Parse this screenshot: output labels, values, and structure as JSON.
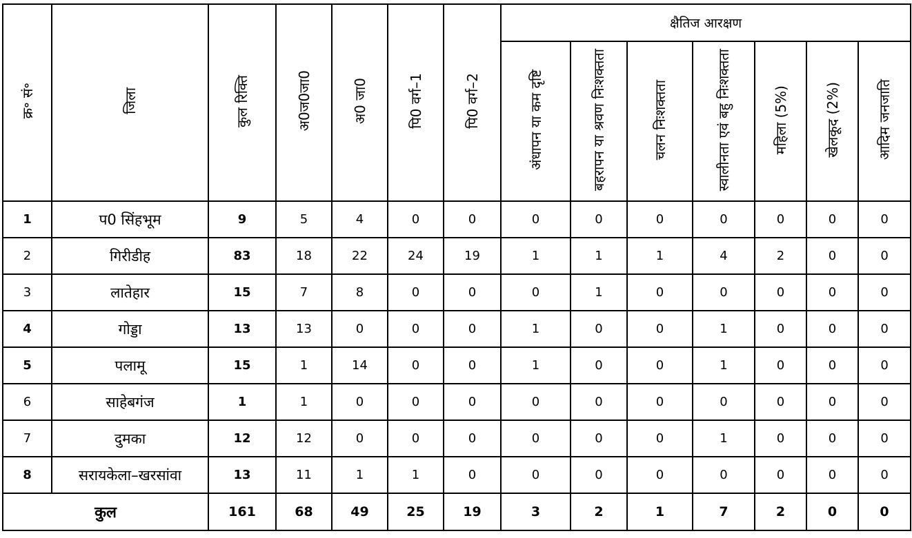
{
  "header": {
    "serial": "क्र॰ सं॰",
    "district": "जिला",
    "total_vacancy": "कुल रिक्ति",
    "st": "अ0ज0जा0",
    "sc": "अ0 जा0",
    "bc1": "पि0 वर्ग–1",
    "bc2": "पि0 वर्ग–2",
    "horizontal_reservation": "क्षैतिज आरक्षण",
    "sub": [
      "अंधापन या कम दृष्टि",
      "बहरापन या श्रवण निःशक्तता",
      "चलन निःशक्तता",
      "स्वालीनता एवं बहु निःशक्तता",
      "महिला (5%)",
      "खेलकूद (2%)",
      "आदिम जनजाति"
    ]
  },
  "rows": [
    {
      "sn": "1",
      "district": "प0 सिंहभूम",
      "total": "9",
      "st": "5",
      "sc": "4",
      "bc1": "0",
      "bc2": "0",
      "h": [
        "0",
        "0",
        "0",
        "0",
        "0",
        "0",
        "0"
      ],
      "sn_bold": true
    },
    {
      "sn": "2",
      "district": "गिरीडीह",
      "total": "83",
      "st": "18",
      "sc": "22",
      "bc1": "24",
      "bc2": "19",
      "h": [
        "1",
        "1",
        "1",
        "4",
        "2",
        "0",
        "0"
      ],
      "sn_bold": false
    },
    {
      "sn": "3",
      "district": "लातेहार",
      "total": "15",
      "st": "7",
      "sc": "8",
      "bc1": "0",
      "bc2": "0",
      "h": [
        "0",
        "1",
        "0",
        "0",
        "0",
        "0",
        "0"
      ],
      "sn_bold": false
    },
    {
      "sn": "4",
      "district": "गोड्डा",
      "total": "13",
      "st": "13",
      "sc": "0",
      "bc1": "0",
      "bc2": "0",
      "h": [
        "1",
        "0",
        "0",
        "1",
        "0",
        "0",
        "0"
      ],
      "sn_bold": true
    },
    {
      "sn": "5",
      "district": "पलामू",
      "total": "15",
      "st": "1",
      "sc": "14",
      "bc1": "0",
      "bc2": "0",
      "h": [
        "1",
        "0",
        "0",
        "1",
        "0",
        "0",
        "0"
      ],
      "sn_bold": true
    },
    {
      "sn": "6",
      "district": "साहेबगंज",
      "total": "1",
      "st": "1",
      "sc": "0",
      "bc1": "0",
      "bc2": "0",
      "h": [
        "0",
        "0",
        "0",
        "0",
        "0",
        "0",
        "0"
      ],
      "sn_bold": false
    },
    {
      "sn": "7",
      "district": "दुमका",
      "total": "12",
      "st": "12",
      "sc": "0",
      "bc1": "0",
      "bc2": "0",
      "h": [
        "0",
        "0",
        "0",
        "1",
        "0",
        "0",
        "0"
      ],
      "sn_bold": false
    },
    {
      "sn": "8",
      "district": "सरायकेला–खरसांवा",
      "total": "13",
      "st": "11",
      "sc": "1",
      "bc1": "1",
      "bc2": "0",
      "h": [
        "0",
        "0",
        "0",
        "0",
        "0",
        "0",
        "0"
      ],
      "sn_bold": true
    }
  ],
  "totals": {
    "label": "कुल",
    "total": "161",
    "st": "68",
    "sc": "49",
    "bc1": "25",
    "bc2": "19",
    "h": [
      "3",
      "2",
      "1",
      "7",
      "2",
      "0",
      "0"
    ]
  }
}
